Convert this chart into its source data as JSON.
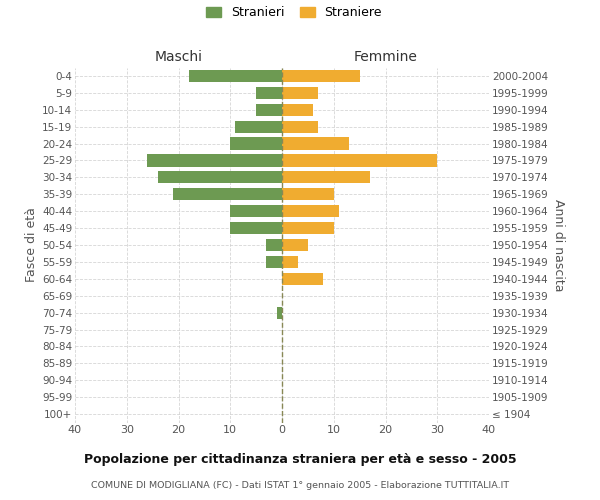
{
  "age_groups": [
    "0-4",
    "5-9",
    "10-14",
    "15-19",
    "20-24",
    "25-29",
    "30-34",
    "35-39",
    "40-44",
    "45-49",
    "50-54",
    "55-59",
    "60-64",
    "65-69",
    "70-74",
    "75-79",
    "80-84",
    "85-89",
    "90-94",
    "95-99",
    "100+"
  ],
  "birth_years": [
    "2000-2004",
    "1995-1999",
    "1990-1994",
    "1985-1989",
    "1980-1984",
    "1975-1979",
    "1970-1974",
    "1965-1969",
    "1960-1964",
    "1955-1959",
    "1950-1954",
    "1945-1949",
    "1940-1944",
    "1935-1939",
    "1930-1934",
    "1925-1929",
    "1920-1924",
    "1915-1919",
    "1910-1914",
    "1905-1909",
    "≤ 1904"
  ],
  "males": [
    18,
    5,
    5,
    9,
    10,
    26,
    24,
    21,
    10,
    10,
    3,
    3,
    0,
    0,
    1,
    0,
    0,
    0,
    0,
    0,
    0
  ],
  "females": [
    15,
    7,
    6,
    7,
    13,
    30,
    17,
    10,
    11,
    10,
    5,
    3,
    8,
    0,
    0,
    0,
    0,
    0,
    0,
    0,
    0
  ],
  "male_color": "#6d9a52",
  "female_color": "#f0ac30",
  "grid_color": "#cccccc",
  "center_line_color": "#888855",
  "bg_color": "#ffffff",
  "title": "Popolazione per cittadinanza straniera per età e sesso - 2005",
  "subtitle": "COMUNE DI MODIGLIANA (FC) - Dati ISTAT 1° gennaio 2005 - Elaborazione TUTTITALIA.IT",
  "ylabel_left": "Fasce di età",
  "ylabel_right": "Anni di nascita",
  "xlabel_left": "Maschi",
  "xlabel_right": "Femmine",
  "legend_male": "Stranieri",
  "legend_female": "Straniere",
  "xlim": 40
}
